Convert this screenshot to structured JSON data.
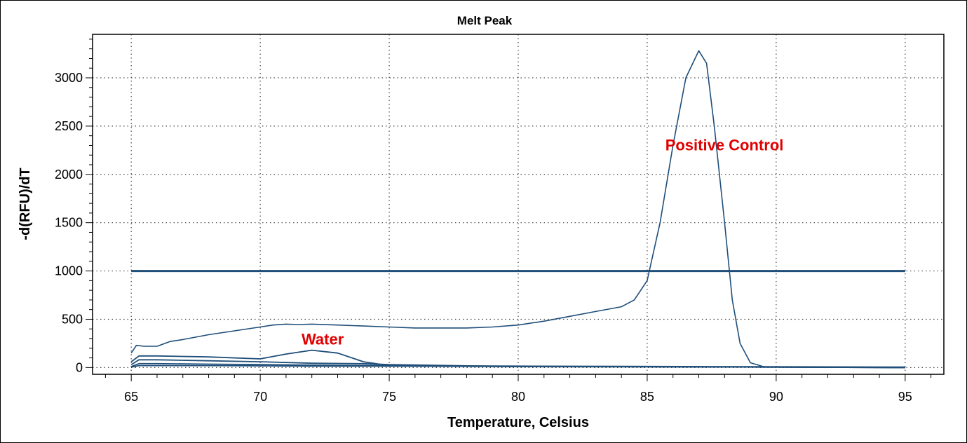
{
  "chart_data": {
    "type": "line",
    "title": "Melt Peak",
    "xlabel": "Temperature, Celsius",
    "ylabel": "-d(RFU)/dT",
    "xlim": [
      63.5,
      96.5
    ],
    "ylim": [
      -70,
      3450
    ],
    "xticks": [
      65,
      70,
      75,
      80,
      85,
      90,
      95
    ],
    "yticks": [
      0,
      500,
      1000,
      1500,
      2000,
      2500,
      3000
    ],
    "grid": true,
    "line_color": "#1f4e79",
    "threshold": {
      "y": 1000,
      "x_start": 65,
      "x_end": 95
    },
    "annotations": [
      {
        "text": "Positive Control",
        "x": 85.7,
        "y": 2250,
        "color": "#e00000"
      },
      {
        "text": "Water",
        "x": 71.6,
        "y": 240,
        "color": "#e00000"
      }
    ],
    "series": [
      {
        "x": [
          65,
          65.2,
          65.5,
          66,
          66.5,
          67,
          68,
          69,
          70,
          70.5,
          71,
          71.5,
          72,
          73,
          74,
          75,
          76,
          77,
          78,
          79,
          80,
          81,
          82,
          83,
          84,
          84.5,
          85,
          85.5,
          86,
          86.5,
          87,
          87.3,
          87.6,
          88,
          88.3,
          88.6,
          89,
          89.5,
          90,
          95
        ],
        "y": [
          150,
          230,
          220,
          220,
          270,
          290,
          340,
          380,
          420,
          440,
          450,
          445,
          450,
          440,
          430,
          420,
          410,
          410,
          410,
          420,
          440,
          480,
          530,
          580,
          630,
          700,
          900,
          1500,
          2300,
          3000,
          3280,
          3150,
          2500,
          1500,
          700,
          250,
          50,
          10,
          5,
          0
        ]
      },
      {
        "x": [
          65,
          65.3,
          66,
          68,
          70,
          71,
          72,
          73,
          74,
          75,
          80,
          90,
          95
        ],
        "y": [
          60,
          120,
          120,
          110,
          90,
          140,
          180,
          150,
          60,
          20,
          10,
          5,
          0
        ]
      },
      {
        "x": [
          65,
          65.3,
          66,
          68,
          70,
          72,
          74,
          75,
          80,
          90,
          95
        ],
        "y": [
          30,
          80,
          80,
          70,
          60,
          45,
          40,
          30,
          10,
          5,
          0
        ]
      },
      {
        "x": [
          65,
          65.3,
          66,
          68,
          70,
          72,
          75,
          80,
          95
        ],
        "y": [
          10,
          40,
          40,
          35,
          30,
          25,
          20,
          15,
          5
        ]
      },
      {
        "x": [
          65,
          65.3,
          68,
          72,
          75,
          80,
          84,
          95
        ],
        "y": [
          5,
          20,
          20,
          15,
          15,
          10,
          10,
          0
        ]
      }
    ]
  }
}
